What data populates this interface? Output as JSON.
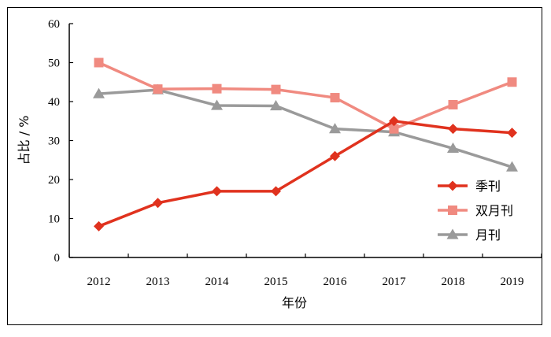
{
  "chart_data": {
    "type": "line",
    "title": "",
    "xlabel": "年份",
    "ylabel": "占比 / %",
    "ylim": [
      0,
      60
    ],
    "yticks": [
      0,
      10,
      20,
      30,
      40,
      50,
      60
    ],
    "categories": [
      "2012",
      "2013",
      "2014",
      "2015",
      "2016",
      "2017",
      "2018",
      "2019"
    ],
    "legend_position": "bottom-right",
    "grid": false,
    "series": [
      {
        "name": "季刊",
        "marker": "diamond",
        "color": "#e0321e",
        "values": [
          8,
          14,
          17,
          17,
          26,
          35,
          33,
          32
        ]
      },
      {
        "name": "双月刊",
        "marker": "square",
        "color": "#f08a80",
        "values": [
          50,
          43.2,
          43.3,
          43.1,
          41,
          33,
          39.2,
          45
        ]
      },
      {
        "name": "月刊",
        "marker": "triangle",
        "color": "#9a9a9a",
        "values": [
          42,
          43,
          39,
          38.9,
          33,
          32.2,
          28,
          23.2
        ]
      }
    ]
  }
}
